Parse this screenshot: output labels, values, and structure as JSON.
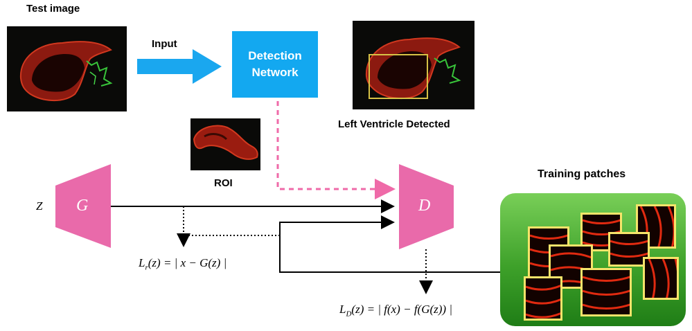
{
  "labels": {
    "test_image": "Test image",
    "input": "Input",
    "detection_network": [
      "Detection",
      "Network"
    ],
    "left_ventricle_detected": "Left Ventricle Detected",
    "roi": "ROI",
    "training_patches": "Training patches"
  },
  "symbols": {
    "z": "Z",
    "generator": "G",
    "discriminator": "D"
  },
  "equations": {
    "lr": {
      "L": "L",
      "sub": "r",
      "rest": "(z) = | x − G(z) |"
    },
    "ld": {
      "L": "L",
      "sub": "D",
      "rest": "(z) = | f(x) − f(G(z)) |"
    }
  },
  "colors": {
    "detection_box": "#13a8f0",
    "arrow_blue": "#1aa7ef",
    "trapezoid_pink": "#e96aaa",
    "dashed_pink": "#ef6aa8",
    "patch_border": "#f6e46a",
    "training_bg_top": "#79cf58",
    "training_bg_bottom": "#1f7d16"
  }
}
